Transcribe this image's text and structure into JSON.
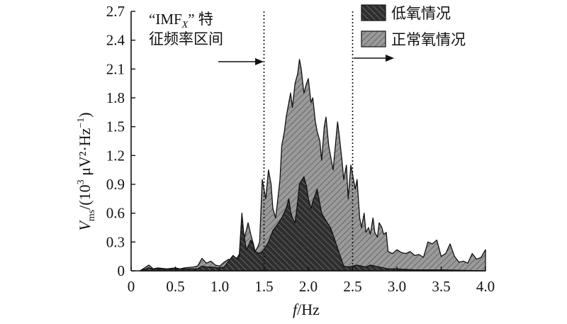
{
  "chart_data": {
    "type": "area",
    "title": "",
    "xlabel": "f/Hz",
    "xlabel_italic": "f",
    "xlabel_rest": "/Hz",
    "ylabel": "V_ms/(10^3 μV²·Hz⁻¹)",
    "ylabel_main": "V",
    "ylabel_sub": "ms",
    "ylabel_paren": "/(10",
    "ylabel_sup": "3",
    "ylabel_unit": " μV²·Hz",
    "ylabel_sup2": "−1",
    "ylabel_close": ")",
    "xlim": [
      0,
      4.0
    ],
    "ylim": [
      0,
      2.7
    ],
    "x_ticks": [
      0,
      0.5,
      1.0,
      1.5,
      2.0,
      2.5,
      3.0,
      3.5,
      4.0
    ],
    "x_tick_labels": [
      "0",
      "0.5",
      "1.0",
      "1.5",
      "2.0",
      "2.5",
      "3.0",
      "3.5",
      "4.0"
    ],
    "y_ticks": [
      0,
      0.3,
      0.6,
      0.9,
      1.2,
      1.5,
      1.8,
      2.1,
      2.4,
      2.7
    ],
    "y_tick_labels": [
      "0",
      "0.3",
      "0.6",
      "0.9",
      "1.2",
      "1.5",
      "1.8",
      "2.1",
      "2.4",
      "2.7"
    ],
    "grid": false,
    "legend_position": "top-right",
    "series": [
      {
        "name": "正常氧情况",
        "color": "#9a9a9a",
        "hatch": "#555555",
        "x": [
          0.1,
          0.2,
          0.25,
          0.3,
          0.4,
          0.5,
          0.55,
          0.6,
          0.7,
          0.75,
          0.8,
          0.85,
          0.9,
          0.95,
          1.0,
          1.05,
          1.1,
          1.15,
          1.2,
          1.25,
          1.28,
          1.3,
          1.32,
          1.35,
          1.38,
          1.4,
          1.43,
          1.45,
          1.48,
          1.5,
          1.52,
          1.55,
          1.58,
          1.6,
          1.63,
          1.65,
          1.68,
          1.7,
          1.73,
          1.75,
          1.78,
          1.8,
          1.82,
          1.85,
          1.88,
          1.9,
          1.92,
          1.95,
          1.98,
          2.0,
          2.03,
          2.05,
          2.08,
          2.1,
          2.13,
          2.15,
          2.18,
          2.2,
          2.23,
          2.25,
          2.28,
          2.3,
          2.33,
          2.35,
          2.38,
          2.4,
          2.43,
          2.45,
          2.48,
          2.5,
          2.53,
          2.55,
          2.58,
          2.6,
          2.63,
          2.65,
          2.68,
          2.7,
          2.73,
          2.75,
          2.78,
          2.8,
          2.83,
          2.85,
          2.88,
          2.9,
          2.95,
          3.0,
          3.05,
          3.1,
          3.15,
          3.2,
          3.25,
          3.3,
          3.35,
          3.4,
          3.45,
          3.5,
          3.55,
          3.6,
          3.65,
          3.7,
          3.75,
          3.8,
          3.85,
          3.9,
          3.95,
          4.0
        ],
        "values": [
          0.0,
          0.06,
          0.02,
          0.03,
          0.02,
          0.03,
          0.02,
          0.03,
          0.04,
          0.05,
          0.13,
          0.08,
          0.1,
          0.06,
          0.05,
          0.09,
          0.12,
          0.1,
          0.14,
          0.22,
          0.35,
          0.42,
          0.5,
          0.38,
          0.28,
          0.2,
          0.25,
          0.3,
          0.95,
          0.85,
          0.75,
          1.05,
          0.9,
          0.65,
          0.55,
          0.7,
          0.95,
          1.3,
          1.45,
          1.6,
          1.75,
          1.85,
          1.7,
          1.95,
          2.05,
          2.2,
          2.1,
          1.85,
          1.95,
          2.0,
          1.75,
          1.8,
          1.55,
          1.45,
          1.35,
          1.15,
          1.5,
          1.6,
          1.3,
          1.2,
          1.05,
          1.25,
          1.55,
          1.4,
          1.15,
          0.95,
          1.1,
          0.75,
          1.1,
          1.0,
          0.85,
          0.95,
          0.55,
          0.45,
          0.6,
          0.4,
          0.45,
          0.38,
          0.55,
          0.4,
          0.35,
          0.5,
          0.45,
          0.38,
          0.4,
          0.2,
          0.18,
          0.22,
          0.19,
          0.18,
          0.2,
          0.16,
          0.17,
          0.14,
          0.3,
          0.28,
          0.32,
          0.15,
          0.18,
          0.28,
          0.15,
          0.09,
          0.1,
          0.08,
          0.18,
          0.12,
          0.14,
          0.22
        ]
      },
      {
        "name": "低氧情况",
        "color": "#333333",
        "hatch": "#7a7a7a",
        "x": [
          0.1,
          0.2,
          0.25,
          0.3,
          0.4,
          0.5,
          0.55,
          0.6,
          0.7,
          0.75,
          0.8,
          0.85,
          0.9,
          1.0,
          1.05,
          1.1,
          1.15,
          1.2,
          1.22,
          1.25,
          1.27,
          1.3,
          1.32,
          1.35,
          1.38,
          1.4,
          1.45,
          1.5,
          1.55,
          1.6,
          1.65,
          1.7,
          1.75,
          1.78,
          1.8,
          1.82,
          1.85,
          1.88,
          1.9,
          1.93,
          1.95,
          1.98,
          2.0,
          2.03,
          2.05,
          2.1,
          2.15,
          2.2,
          2.25,
          2.3,
          2.35,
          2.4,
          2.45,
          2.5,
          2.55,
          2.6,
          2.65,
          2.7,
          2.75,
          2.8,
          2.85,
          2.9,
          3.0,
          3.2,
          3.5,
          4.0
        ],
        "values": [
          0.0,
          0.03,
          0.02,
          0.02,
          0.02,
          0.02,
          0.02,
          0.02,
          0.02,
          0.02,
          0.05,
          0.04,
          0.04,
          0.03,
          0.04,
          0.1,
          0.16,
          0.12,
          0.15,
          0.6,
          0.4,
          0.22,
          0.25,
          0.32,
          0.27,
          0.2,
          0.18,
          0.22,
          0.3,
          0.42,
          0.48,
          0.55,
          0.65,
          0.75,
          0.62,
          0.55,
          0.5,
          0.72,
          0.9,
          0.95,
          0.98,
          0.88,
          0.75,
          0.65,
          0.72,
          0.85,
          0.6,
          0.52,
          0.45,
          0.32,
          0.18,
          0.05,
          0.04,
          0.05,
          0.06,
          0.05,
          0.04,
          0.06,
          0.05,
          0.04,
          0.03,
          0.02,
          0.02,
          0.01,
          0.01,
          0.0
        ]
      }
    ],
    "vlines": [
      1.5,
      2.5
    ],
    "annotation_line1_pre": "“IMF",
    "annotation_line1_sub": "X",
    "annotation_line1_post": "” 特",
    "annotation_line2": "征频率区间"
  }
}
